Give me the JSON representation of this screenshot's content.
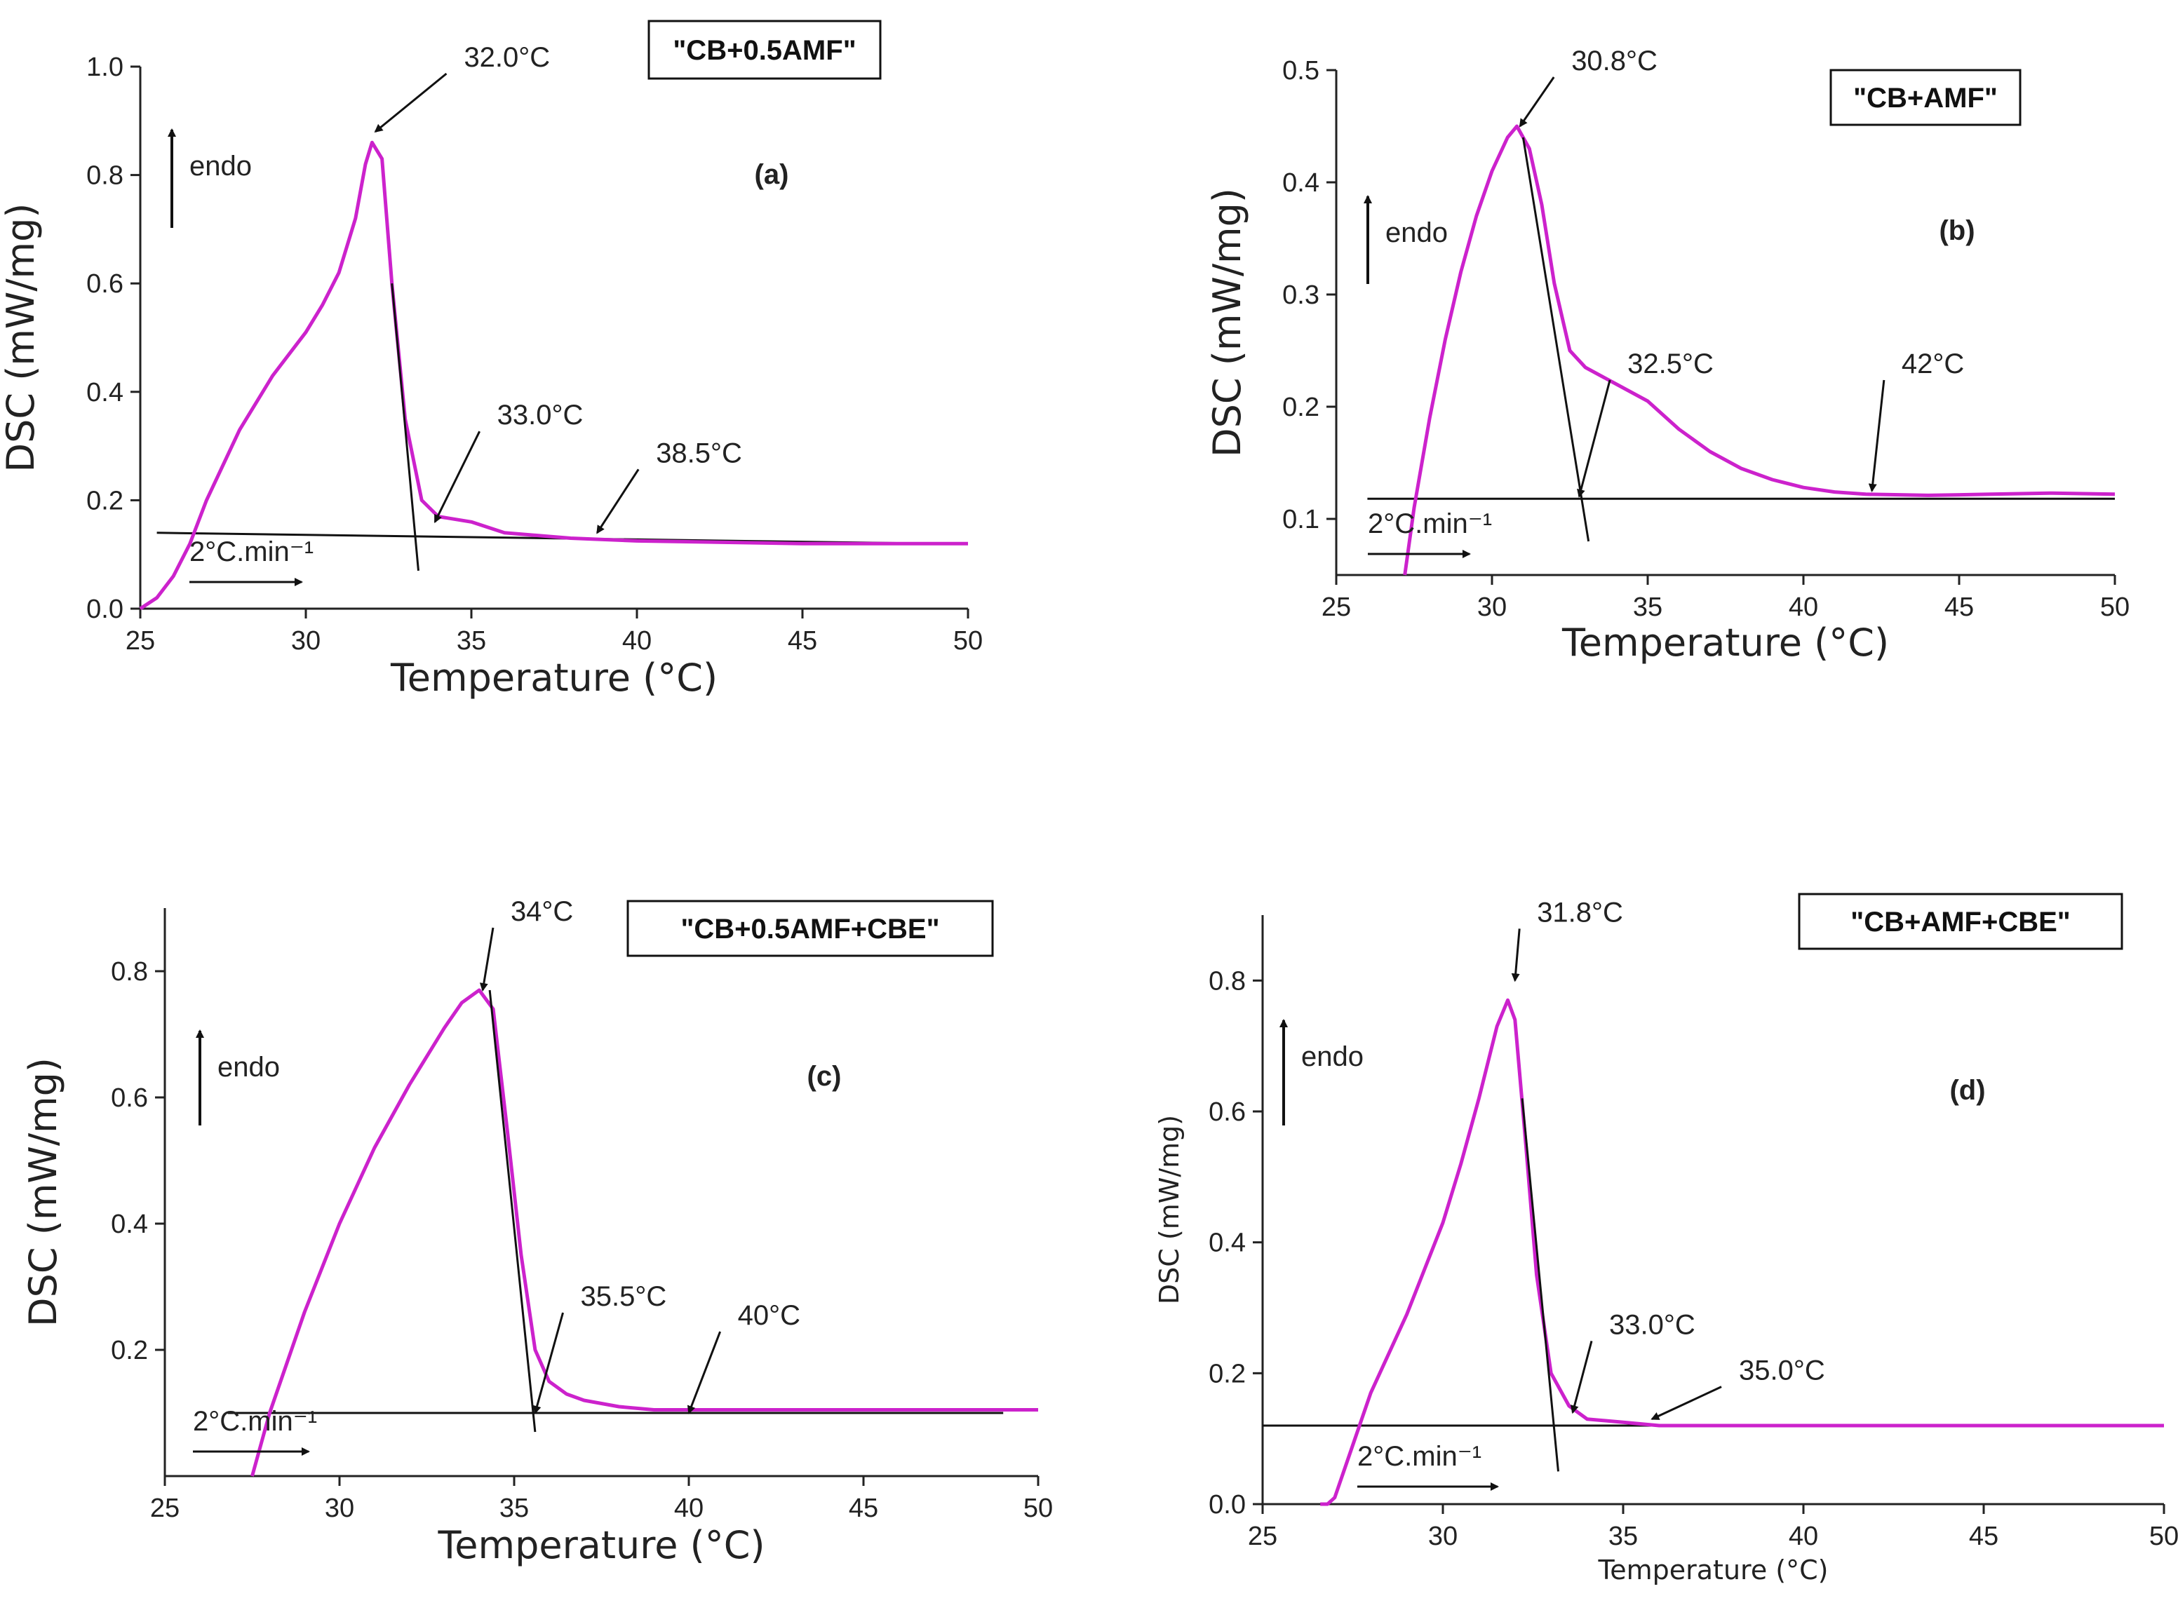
{
  "chart_data": [
    {
      "type": "line",
      "panel_label": "(a)",
      "sample_label": "\"CB+0.5AMF\"",
      "xlabel": "Temperature (°C)",
      "ylabel": "DSC (mW/mg)",
      "xlim": [
        25,
        50
      ],
      "ylim": [
        0,
        1.0
      ],
      "xticks": [
        "25",
        "30",
        "35",
        "40",
        "45",
        "50"
      ],
      "yticks": [
        "0.0",
        "0.2",
        "0.4",
        "0.6",
        "0.8",
        "1.0"
      ],
      "direction_label": "endo",
      "rate_label": "2°C.min⁻¹",
      "color": "#cc22cc",
      "series": [
        {
          "name": "CB+0.5AMF",
          "x": [
            25.0,
            25.5,
            26,
            26.5,
            27,
            28,
            29,
            30,
            30.5,
            31,
            31.5,
            31.8,
            32.0,
            32.3,
            32.6,
            33,
            33.5,
            34,
            35,
            36,
            38,
            40,
            45,
            50
          ],
          "y": [
            0.0,
            0.02,
            0.06,
            0.12,
            0.2,
            0.33,
            0.43,
            0.51,
            0.56,
            0.62,
            0.72,
            0.82,
            0.86,
            0.83,
            0.6,
            0.35,
            0.2,
            0.17,
            0.16,
            0.14,
            0.13,
            0.125,
            0.12,
            0.12
          ]
        }
      ],
      "baseline": {
        "x": [
          25.5,
          49
        ],
        "y": [
          0.14,
          0.12
        ]
      },
      "tangent": {
        "x": [
          32.6,
          33.4
        ],
        "y": [
          0.6,
          0.07
        ]
      },
      "annotations": [
        {
          "text": "32.0°C",
          "at": [
            32.1,
            0.88
          ],
          "text_at": [
            35.2,
            1.0
          ]
        },
        {
          "text": "33.0°C",
          "at": [
            33.9,
            0.16
          ],
          "text_at": [
            36.2,
            0.34
          ]
        },
        {
          "text": "38.5°C",
          "at": [
            38.8,
            0.14
          ],
          "text_at": [
            41.0,
            0.27
          ]
        }
      ]
    },
    {
      "type": "line",
      "panel_label": "(b)",
      "sample_label": "\"CB+AMF\"",
      "xlabel": "Temperature (°C)",
      "ylabel": "DSC (mW/mg)",
      "xlim": [
        25,
        50
      ],
      "ylim": [
        0.05,
        0.5
      ],
      "xticks": [
        "25",
        "30",
        "35",
        "40",
        "45",
        "50"
      ],
      "yticks": [
        "0.1",
        "0.2",
        "0.3",
        "0.4",
        "0.5"
      ],
      "direction_label": "endo",
      "rate_label": "2°C.min⁻¹",
      "color": "#cc22cc",
      "series": [
        {
          "name": "CB+AMF",
          "x": [
            27.2,
            27.5,
            28,
            28.5,
            29,
            29.5,
            30,
            30.5,
            30.8,
            31.2,
            31.6,
            32,
            32.5,
            33,
            34,
            35,
            36,
            37,
            38,
            39,
            40,
            41,
            42,
            44,
            46,
            48,
            50
          ],
          "y": [
            0.05,
            0.11,
            0.19,
            0.26,
            0.32,
            0.37,
            0.41,
            0.44,
            0.45,
            0.43,
            0.38,
            0.31,
            0.25,
            0.235,
            0.22,
            0.205,
            0.18,
            0.16,
            0.145,
            0.135,
            0.128,
            0.124,
            0.122,
            0.121,
            0.122,
            0.123,
            0.122
          ]
        }
      ],
      "baseline": {
        "x": [
          26,
          50
        ],
        "y": [
          0.118,
          0.118
        ]
      },
      "tangent": {
        "x": [
          31,
          33.1
        ],
        "y": [
          0.44,
          0.08
        ]
      },
      "annotations": [
        {
          "text": "30.8°C",
          "at": [
            30.9,
            0.45
          ],
          "text_at": [
            33.0,
            0.5
          ]
        },
        {
          "text": "32.5°C",
          "at": [
            32.8,
            0.12
          ],
          "text_at": [
            34.8,
            0.23
          ]
        },
        {
          "text": "42°C",
          "at": [
            42.2,
            0.125
          ],
          "text_at": [
            43.6,
            0.23
          ]
        }
      ]
    },
    {
      "type": "line",
      "panel_label": "(c)",
      "sample_label": "\"CB+0.5AMF+CBE\"",
      "xlabel": "Temperature (°C)",
      "ylabel": "DSC (mW/mg)",
      "xlim": [
        25,
        50
      ],
      "ylim": [
        0,
        0.9
      ],
      "xticks": [
        "25",
        "30",
        "35",
        "40",
        "45",
        "50"
      ],
      "yticks": [
        "0.2",
        "0.4",
        "0.6",
        "0.8"
      ],
      "direction_label": "endo",
      "rate_label": "2°C.min⁻¹",
      "color": "#cc22cc",
      "series": [
        {
          "name": "CB+0.5AMF+CBE",
          "x": [
            27.5,
            28,
            28.5,
            29,
            30,
            31,
            32,
            33,
            33.5,
            34,
            34.4,
            34.8,
            35.2,
            35.6,
            36,
            36.5,
            37,
            38,
            39,
            40,
            45,
            50
          ],
          "y": [
            0.0,
            0.1,
            0.18,
            0.26,
            0.4,
            0.52,
            0.62,
            0.71,
            0.75,
            0.77,
            0.74,
            0.55,
            0.35,
            0.2,
            0.15,
            0.13,
            0.12,
            0.11,
            0.105,
            0.105,
            0.105,
            0.105
          ]
        }
      ],
      "baseline": {
        "x": [
          26.8,
          49
        ],
        "y": [
          0.1,
          0.1
        ]
      },
      "tangent": {
        "x": [
          34.3,
          35.6
        ],
        "y": [
          0.77,
          0.07
        ]
      },
      "annotations": [
        {
          "text": "34°C",
          "at": [
            34.1,
            0.77
          ],
          "text_at": [
            35.3,
            0.88
          ]
        },
        {
          "text": "35.5°C",
          "at": [
            35.6,
            0.1
          ],
          "text_at": [
            37.3,
            0.27
          ]
        },
        {
          "text": "40°C",
          "at": [
            40.0,
            0.1
          ],
          "text_at": [
            41.8,
            0.24
          ]
        }
      ]
    },
    {
      "type": "line",
      "panel_label": "(d)",
      "sample_label": "\"CB+AMF+CBE\"",
      "xlabel": "Temperature (°C)",
      "ylabel": "DSC (mW/mg)",
      "xlim": [
        25,
        50
      ],
      "ylim": [
        0,
        0.9
      ],
      "xticks": [
        "25",
        "30",
        "35",
        "40",
        "45",
        "50"
      ],
      "yticks": [
        "0.0",
        "0.2",
        "0.4",
        "0.6",
        "0.8"
      ],
      "direction_label": "endo",
      "rate_label": "2°C.min⁻¹",
      "color": "#cc22cc",
      "series": [
        {
          "name": "CB+AMF+CBE",
          "x": [
            26.6,
            26.8,
            27,
            27.5,
            28,
            29,
            30,
            30.5,
            31,
            31.5,
            31.8,
            32,
            32.3,
            32.6,
            33,
            33.5,
            34,
            35,
            36,
            40,
            45,
            50
          ],
          "y": [
            0.0,
            0.0,
            0.01,
            0.09,
            0.17,
            0.29,
            0.43,
            0.52,
            0.62,
            0.73,
            0.77,
            0.74,
            0.55,
            0.35,
            0.2,
            0.15,
            0.13,
            0.125,
            0.12,
            0.12,
            0.12,
            0.12
          ]
        }
      ],
      "baseline": {
        "x": [
          25,
          50
        ],
        "y": [
          0.12,
          0.12
        ]
      },
      "tangent": {
        "x": [
          32.2,
          33.2
        ],
        "y": [
          0.62,
          0.05
        ]
      },
      "annotations": [
        {
          "text": "31.8°C",
          "at": [
            32.0,
            0.8
          ],
          "text_at": [
            33.0,
            0.89
          ]
        },
        {
          "text": "33.0°C",
          "at": [
            33.6,
            0.14
          ],
          "text_at": [
            35.0,
            0.26
          ]
        },
        {
          "text": "35.0°C",
          "at": [
            35.8,
            0.13
          ],
          "text_at": [
            38.6,
            0.19
          ]
        }
      ]
    }
  ]
}
